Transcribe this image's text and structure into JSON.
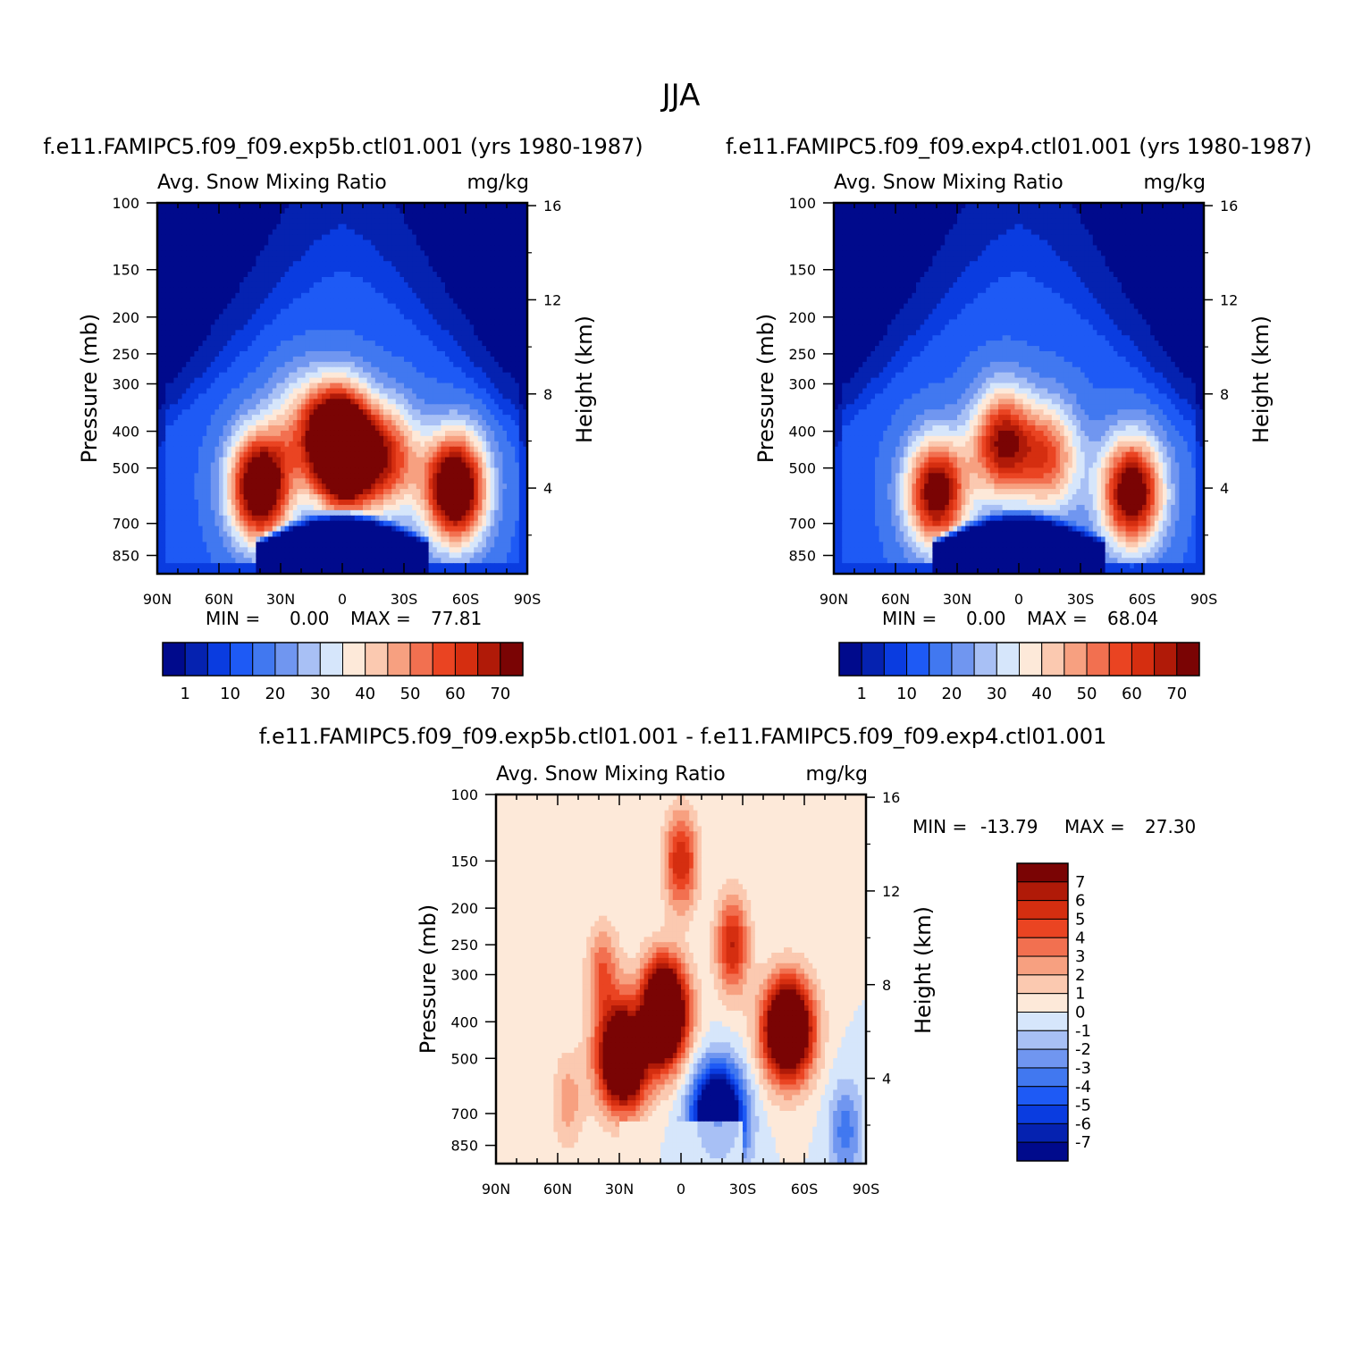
{
  "figure": {
    "title": "JJA"
  },
  "chart_data": [
    {
      "type": "heatmap",
      "name": "panel-exp5b",
      "title": "f.e11.FAMIPC5.f09_f09.exp5b.ctl01.001 (yrs 1980-1987)",
      "variable": "Avg. Snow Mixing Ratio",
      "units": "mg/kg",
      "ylabel": "Pressure (mb)",
      "ylabel_right": "Height (km)",
      "x_ticks": [
        "90N",
        "60N",
        "30N",
        "0",
        "30S",
        "60S",
        "90S"
      ],
      "y_ticks": [
        "100",
        "150",
        "200",
        "250",
        "300",
        "400",
        "500",
        "700",
        "850"
      ],
      "height_ticks": [
        "16",
        "12",
        "8",
        "4"
      ],
      "min_label": "MIN =",
      "min_value": "0.00",
      "max_label": "MAX =",
      "max_value": "77.81",
      "levels": [
        1,
        5,
        10,
        15,
        20,
        25,
        30,
        35,
        40,
        45,
        50,
        55,
        60,
        65,
        70
      ],
      "colorbar_labels": [
        "1",
        "10",
        "20",
        "30",
        "40",
        "50",
        "60",
        "70"
      ],
      "colors": [
        "#000a8c",
        "#0522b0",
        "#0a3ce0",
        "#1e5af5",
        "#4178f0",
        "#7096f0",
        "#a8c0f5",
        "#d6e6fb",
        "#fde9d9",
        "#fbc9b0",
        "#f7a080",
        "#f27050",
        "#ea4422",
        "#d52e10",
        "#b01a08",
        "#7a0404"
      ],
      "blobs": [
        {
          "lat": -55,
          "p": 565,
          "amp": 77.81
        },
        {
          "lat": 3,
          "p": 420,
          "amp": 74
        },
        {
          "lat": -3,
          "p": 480,
          "amp": 50
        },
        {
          "lat": -23,
          "p": 470,
          "amp": 42
        },
        {
          "lat": 22,
          "p": 380,
          "amp": 20
        },
        {
          "lat": 40,
          "p": 560,
          "amp": 75
        }
      ]
    },
    {
      "type": "heatmap",
      "name": "panel-exp4",
      "title": "f.e11.FAMIPC5.f09_f09.exp4.ctl01.001 (yrs 1980-1987)",
      "variable": "Avg. Snow Mixing Ratio",
      "units": "mg/kg",
      "ylabel": "Pressure (mb)",
      "ylabel_right": "Height (km)",
      "x_ticks": [
        "90N",
        "60N",
        "30N",
        "0",
        "30S",
        "60S",
        "90S"
      ],
      "y_ticks": [
        "100",
        "150",
        "200",
        "250",
        "300",
        "400",
        "500",
        "700",
        "850"
      ],
      "height_ticks": [
        "16",
        "12",
        "8",
        "4"
      ],
      "min_label": "MIN =",
      "min_value": "0.00",
      "max_label": "MAX =",
      "max_value": "68.04",
      "levels": [
        1,
        5,
        10,
        15,
        20,
        25,
        30,
        35,
        40,
        45,
        50,
        55,
        60,
        65,
        70
      ],
      "colorbar_labels": [
        "1",
        "10",
        "20",
        "30",
        "40",
        "50",
        "60",
        "70"
      ],
      "colors": [
        "#000a8c",
        "#0522b0",
        "#0a3ce0",
        "#1e5af5",
        "#4178f0",
        "#7096f0",
        "#a8c0f5",
        "#d6e6fb",
        "#fde9d9",
        "#fbc9b0",
        "#f7a080",
        "#f27050",
        "#ea4422",
        "#d52e10",
        "#b01a08",
        "#7a0404"
      ],
      "blobs": [
        {
          "lat": -55,
          "p": 580,
          "amp": 68.04
        },
        {
          "lat": 8,
          "p": 430,
          "amp": 56
        },
        {
          "lat": -15,
          "p": 470,
          "amp": 40
        },
        {
          "lat": 40,
          "p": 580,
          "amp": 64
        }
      ]
    },
    {
      "type": "heatmap",
      "name": "panel-diff",
      "title": "f.e11.FAMIPC5.f09_f09.exp5b.ctl01.001 - f.e11.FAMIPC5.f09_f09.exp4.ctl01.001",
      "variable": "Avg. Snow Mixing Ratio",
      "units": "mg/kg",
      "ylabel": "Pressure (mb)",
      "ylabel_right": "Height (km)",
      "x_ticks": [
        "90N",
        "60N",
        "30N",
        "0",
        "30S",
        "60S",
        "90S"
      ],
      "y_ticks": [
        "100",
        "150",
        "200",
        "250",
        "300",
        "400",
        "500",
        "700",
        "850"
      ],
      "height_ticks": [
        "16",
        "12",
        "8",
        "4"
      ],
      "min_label": "MIN =",
      "min_value": "-13.79",
      "max_label": "MAX =",
      "max_value": "27.30",
      "levels": [
        -7,
        -6,
        -5,
        -4,
        -3,
        -2,
        -1,
        0,
        1,
        2,
        3,
        4,
        5,
        6,
        7
      ],
      "colorbar_labels": [
        "7",
        "6",
        "5",
        "4",
        "3",
        "2",
        "1",
        "0",
        "-1",
        "-2",
        "-3",
        "-4",
        "-5",
        "-6",
        "-7"
      ],
      "colors": [
        "#000a8c",
        "#0522b0",
        "#0a3ce0",
        "#1e5af5",
        "#4178f0",
        "#7096f0",
        "#a8c0f5",
        "#d6e6fb",
        "#fde9d9",
        "#fbc9b0",
        "#f7a080",
        "#f27050",
        "#ea4422",
        "#d52e10",
        "#b01a08",
        "#7a0404"
      ],
      "blobs": [
        {
          "lat": -52,
          "p": 420,
          "amp": 14
        },
        {
          "lat": 10,
          "p": 380,
          "amp": 18
        },
        {
          "lat": 28,
          "p": 500,
          "amp": 14
        },
        {
          "lat": -25,
          "p": 250,
          "amp": 6
        },
        {
          "lat": 0,
          "p": 150,
          "amp": 6
        },
        {
          "lat": -18,
          "p": 720,
          "amp": -13.79
        },
        {
          "lat": 18,
          "p": 400,
          "amp": -6
        },
        {
          "lat": -80,
          "p": 780,
          "amp": -3.5
        },
        {
          "lat": 38,
          "p": 300,
          "amp": 4
        },
        {
          "lat": 55,
          "p": 650,
          "amp": 2.5
        }
      ]
    }
  ]
}
